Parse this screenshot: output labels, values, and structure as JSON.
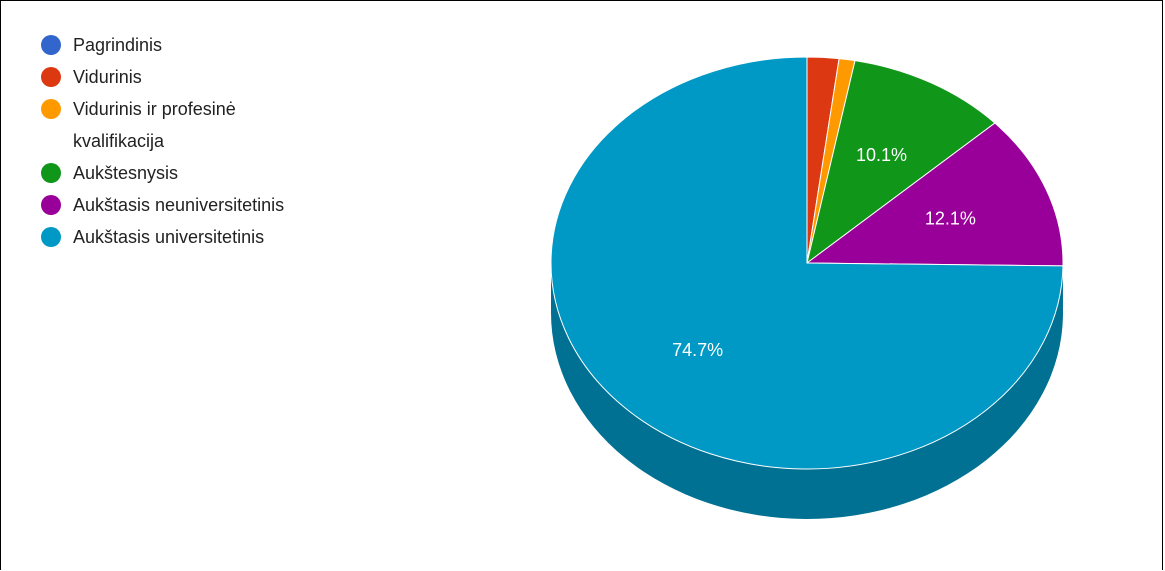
{
  "chart_data": {
    "type": "pie",
    "style": "3d",
    "legend_position": "left",
    "slices": [
      {
        "name": "Pagrindinis",
        "value": 0.0,
        "label": "",
        "color": "#3366cc",
        "side_color": "#2a55aa"
      },
      {
        "name": "Vidurinis",
        "value": 2.0,
        "label": "",
        "color": "#dc3912",
        "side_color": "#a82b0e"
      },
      {
        "name": "Vidurinis ir profesinė kvalifikacija",
        "value": 1.0,
        "label": "",
        "color": "#ff9900",
        "side_color": "#c47700"
      },
      {
        "name": "Aukštesnysis",
        "value": 10.1,
        "label": "10.1%",
        "color": "#109618",
        "side_color": "#0c7212"
      },
      {
        "name": "Aukštasis neuniversitetinis",
        "value": 12.1,
        "label": "12.1%",
        "color": "#990099",
        "side_color": "#730073"
      },
      {
        "name": "Aukštasis universitetinis",
        "value": 74.7,
        "label": "74.7%",
        "color": "#0099c6",
        "side_color": "#007192"
      }
    ]
  }
}
